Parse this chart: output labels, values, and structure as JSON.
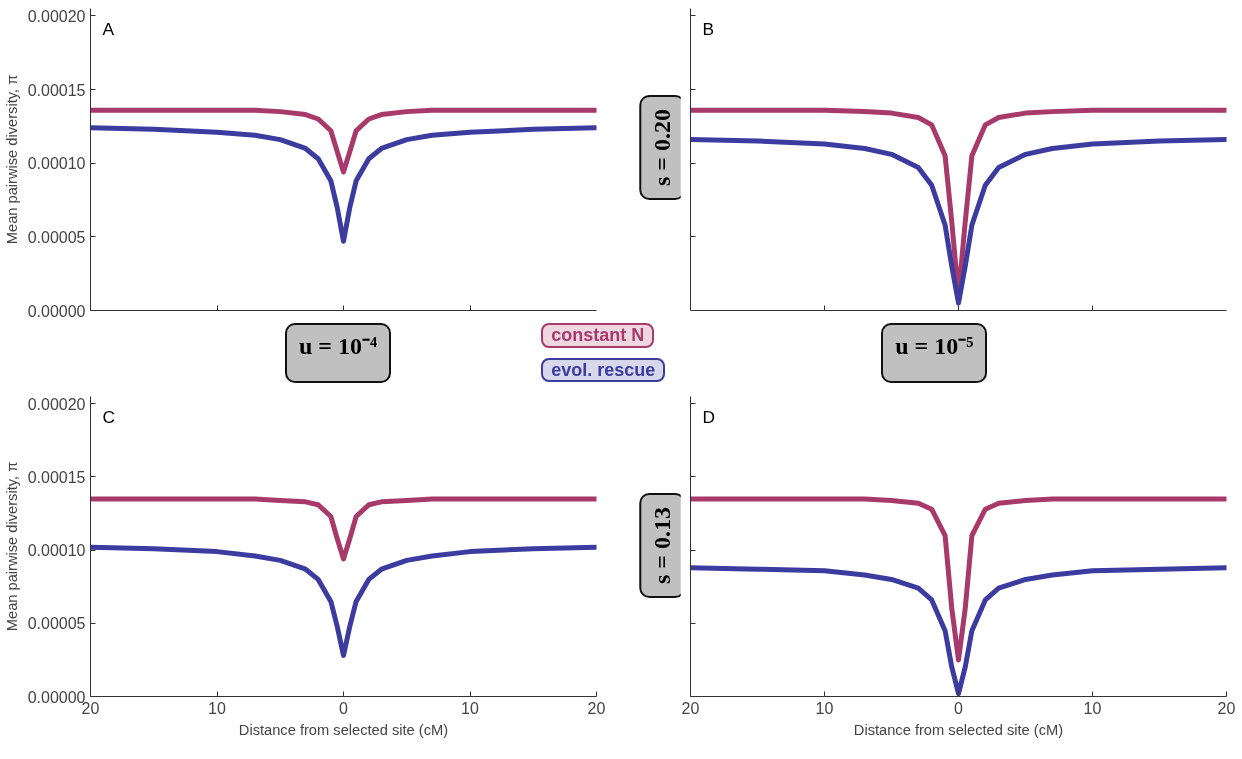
{
  "chart_data": [
    {
      "type": "line",
      "annotations": [
        "A",
        "u = 10⁻⁴"
      ],
      "ylabel": "Mean pairwise diversity, π",
      "legend": "bottom right",
      "tick_labels": "y",
      "grid": false,
      "x": [
        -20,
        -15,
        -10,
        -7,
        -5,
        -3,
        -2,
        -1,
        -0.5,
        0,
        0.5,
        1,
        2,
        3,
        5,
        7,
        10,
        15,
        20
      ],
      "xlim": [
        -20,
        20
      ],
      "xticks": [
        {
          "value": -10,
          "label": null
        },
        {
          "value": 0,
          "label": null
        },
        {
          "value": 10,
          "label": null
        }
      ],
      "ylim": [
        0,
        0.000205
      ],
      "yticks": [
        {
          "value": 0,
          "label": "0.00000"
        },
        {
          "value": 5e-05,
          "label": "0.00005"
        },
        {
          "value": 0.0001,
          "label": "0.00010"
        },
        {
          "value": 0.00015,
          "label": "0.00015"
        },
        {
          "value": 0.0002,
          "label": "0.00020"
        }
      ],
      "series": [
        {
          "name": "constant N",
          "color": "#a8396b",
          "values": [
            0.000136,
            0.000136,
            0.000136,
            0.000136,
            0.000135,
            0.000133,
            0.00013,
            0.000122,
            0.000108,
            9.4e-05,
            0.000108,
            0.000122,
            0.00013,
            0.000133,
            0.000135,
            0.000136,
            0.000136,
            0.000136,
            0.000136
          ]
        },
        {
          "name": "evol. rescue",
          "color": "#3c3ca0",
          "values": [
            0.000124,
            0.000123,
            0.000121,
            0.000119,
            0.000116,
            0.00011,
            0.000103,
            8.8e-05,
            7e-05,
            4.7e-05,
            7e-05,
            8.8e-05,
            0.000103,
            0.00011,
            0.000116,
            0.000119,
            0.000121,
            0.000123,
            0.000124
          ]
        }
      ]
    },
    {
      "type": "line",
      "annotations": [
        "B",
        "s = 0.20",
        "u = 10⁻⁵"
      ],
      "tick_labels": false,
      "grid": false,
      "x": [
        -20,
        -15,
        -10,
        -7,
        -5,
        -3,
        -2,
        -1,
        -0.5,
        0,
        0.5,
        1,
        2,
        3,
        5,
        7,
        10,
        15,
        20
      ],
      "xlim": [
        -20,
        20
      ],
      "xticks": [
        {
          "value": -10,
          "label": null
        },
        {
          "value": 0,
          "label": null
        },
        {
          "value": 10,
          "label": null
        }
      ],
      "ylim": [
        0,
        0.000205
      ],
      "yticks": [
        {
          "value": 5e-05,
          "label": null
        },
        {
          "value": 0.0001,
          "label": null
        },
        {
          "value": 0.00015,
          "label": null
        },
        {
          "value": 0.0002,
          "label": null
        }
      ],
      "series": [
        {
          "color": "#a8396b",
          "values": [
            0.000136,
            0.000136,
            0.000136,
            0.000135,
            0.000134,
            0.000131,
            0.000126,
            0.000105,
            6e-05,
            1e-05,
            6e-05,
            0.000105,
            0.000126,
            0.000131,
            0.000134,
            0.000135,
            0.000136,
            0.000136,
            0.000136
          ]
        },
        {
          "color": "#3c3ca0",
          "values": [
            0.000116,
            0.000115,
            0.000113,
            0.00011,
            0.000106,
            9.7e-05,
            8.5e-05,
            5.8e-05,
            3e-05,
            5e-06,
            3e-05,
            5.8e-05,
            8.5e-05,
            9.7e-05,
            0.000106,
            0.00011,
            0.000113,
            0.000115,
            0.000116
          ]
        }
      ]
    },
    {
      "type": "line",
      "annotations": [
        "C"
      ],
      "ylabel": "Mean pairwise diversity, π",
      "xlabel": "Distance from selected site (cM)",
      "grid": false,
      "x": [
        -20,
        -15,
        -10,
        -7,
        -5,
        -3,
        -2,
        -1,
        -0.5,
        0,
        0.5,
        1,
        2,
        3,
        5,
        7,
        10,
        15,
        20
      ],
      "xlim": [
        -20,
        20
      ],
      "xticks": [
        {
          "value": -20,
          "label": "20"
        },
        {
          "value": -10,
          "label": "10"
        },
        0,
        10,
        20
      ],
      "ylim": [
        0,
        0.000205
      ],
      "yticks": [
        {
          "value": 0,
          "label": "0.00000"
        },
        {
          "value": 5e-05,
          "label": "0.00005"
        },
        {
          "value": 0.0001,
          "label": "0.00010"
        },
        {
          "value": 0.00015,
          "label": "0.00015"
        },
        {
          "value": 0.0002,
          "label": "0.00020"
        }
      ],
      "series": [
        {
          "color": "#a8396b",
          "values": [
            0.000135,
            0.000135,
            0.000135,
            0.000135,
            0.000134,
            0.000133,
            0.000131,
            0.000123,
            0.000108,
            9.4e-05,
            0.000108,
            0.000123,
            0.000131,
            0.000133,
            0.000134,
            0.000135,
            0.000135,
            0.000135,
            0.000135
          ]
        },
        {
          "color": "#3c3ca0",
          "values": [
            0.000102,
            0.000101,
            9.9e-05,
            9.6e-05,
            9.3e-05,
            8.7e-05,
            8e-05,
            6.5e-05,
            4.8e-05,
            2.8e-05,
            4.8e-05,
            6.5e-05,
            8e-05,
            8.7e-05,
            9.3e-05,
            9.6e-05,
            9.9e-05,
            0.000101,
            0.000102
          ]
        }
      ]
    },
    {
      "type": "line",
      "annotations": [
        "D",
        "s = 0.13"
      ],
      "xlabel": "Distance from selected site (cM)",
      "tick_labels": "x",
      "grid": false,
      "x": [
        -20,
        -15,
        -10,
        -7,
        -5,
        -3,
        -2,
        -1,
        -0.5,
        0,
        0.5,
        1,
        2,
        3,
        5,
        7,
        10,
        15,
        20
      ],
      "xlim": [
        -20,
        20
      ],
      "xticks": [
        {
          "value": -20,
          "label": "20"
        },
        {
          "value": -10,
          "label": "10"
        },
        0,
        10,
        20
      ],
      "ylim": [
        0,
        0.000205
      ],
      "yticks": [
        {
          "value": 5e-05,
          "label": null
        },
        {
          "value": 0.0001,
          "label": null
        },
        {
          "value": 0.00015,
          "label": null
        },
        {
          "value": 0.0002,
          "label": null
        }
      ],
      "series": [
        {
          "color": "#a8396b",
          "values": [
            0.000135,
            0.000135,
            0.000135,
            0.000135,
            0.000134,
            0.000132,
            0.000128,
            0.00011,
            6e-05,
            2.5e-05,
            6e-05,
            0.00011,
            0.000128,
            0.000132,
            0.000134,
            0.000135,
            0.000135,
            0.000135,
            0.000135
          ]
        },
        {
          "color": "#3c3ca0",
          "values": [
            8.8e-05,
            8.7e-05,
            8.6e-05,
            8.3e-05,
            8e-05,
            7.4e-05,
            6.6e-05,
            4.5e-05,
            2e-05,
            2e-06,
            2e-05,
            4.5e-05,
            6.6e-05,
            7.4e-05,
            8e-05,
            8.3e-05,
            8.6e-05,
            8.7e-05,
            8.8e-05
          ]
        }
      ]
    }
  ]
}
